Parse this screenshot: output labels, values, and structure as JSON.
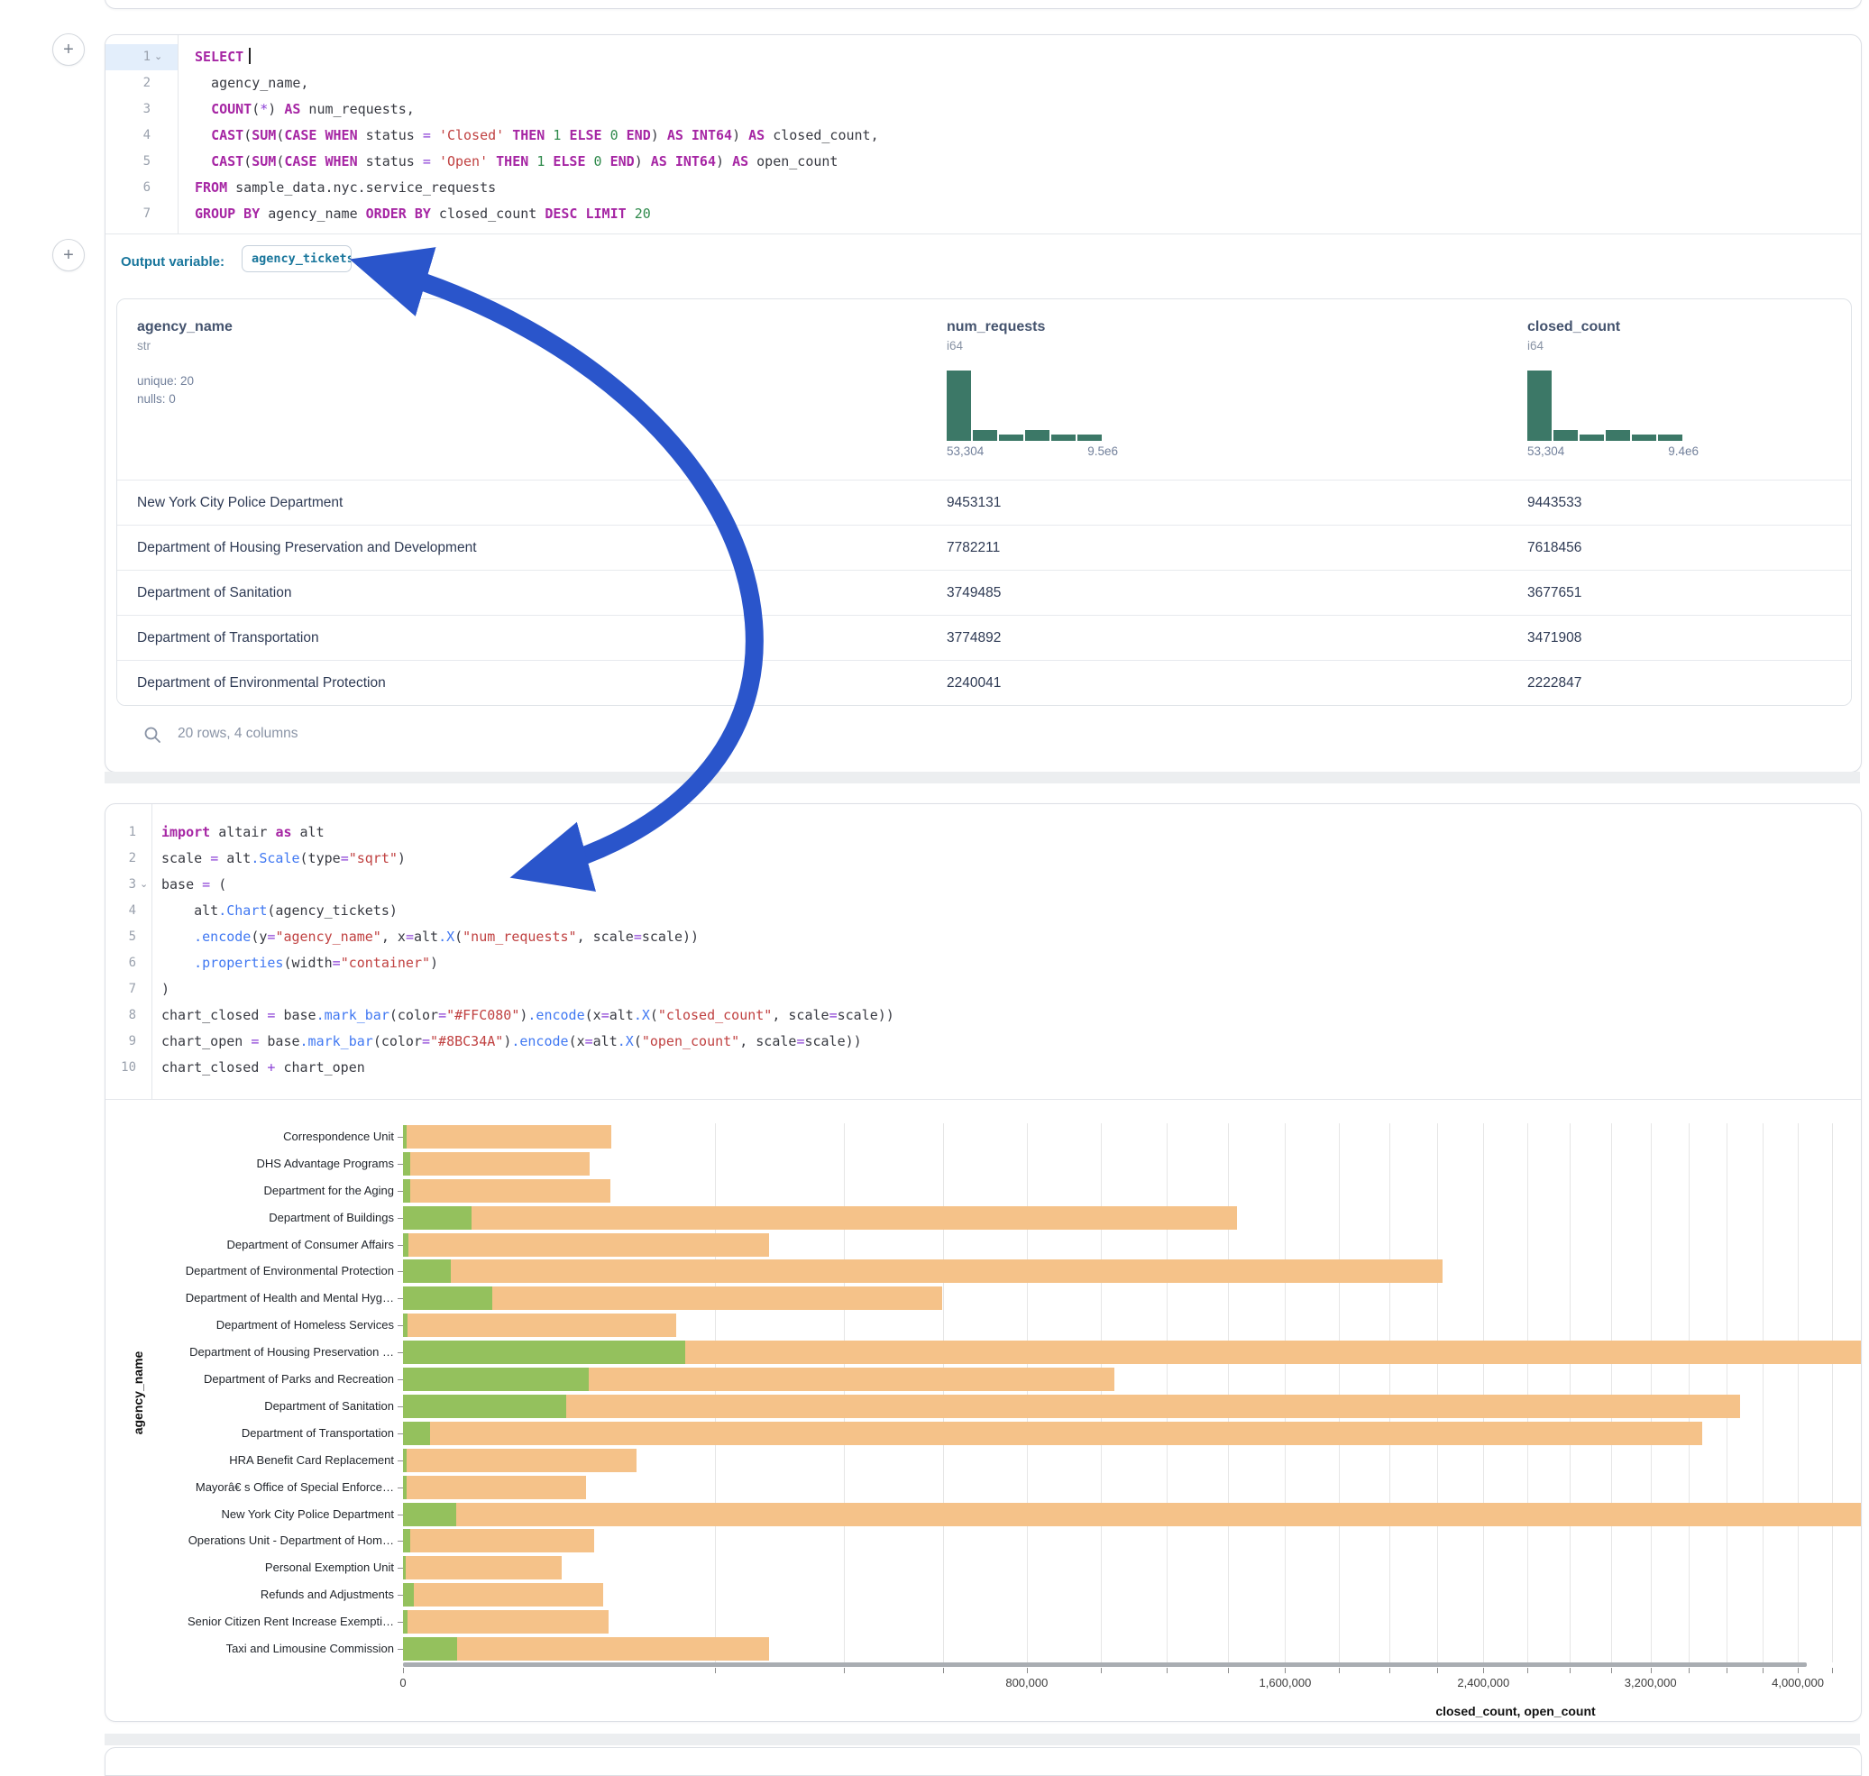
{
  "accent": {
    "arrow_blue": "#2a55cb",
    "hist_teal": "#3c7867",
    "outvar_teal": "#19769c"
  },
  "cell1": {
    "add_button": "+",
    "sql_gutter": [
      {
        "n": "1",
        "chevron": true,
        "highlight": true
      },
      {
        "n": "2"
      },
      {
        "n": "3"
      },
      {
        "n": "4"
      },
      {
        "n": "5"
      },
      {
        "n": "6"
      },
      {
        "n": "7"
      }
    ],
    "sql_lines": [
      [
        [
          "k",
          "SELECT"
        ],
        [
          "cursor",
          ""
        ]
      ],
      [
        [
          "p",
          "  agency_name,"
        ]
      ],
      [
        [
          "p",
          "  "
        ],
        [
          "k",
          "COUNT"
        ],
        [
          "p",
          "("
        ],
        [
          "v",
          "*"
        ],
        [
          "p",
          ") "
        ],
        [
          "k",
          "AS"
        ],
        [
          "p",
          " num_requests,"
        ]
      ],
      [
        [
          "p",
          "  "
        ],
        [
          "k",
          "CAST"
        ],
        [
          "p",
          "("
        ],
        [
          "k",
          "SUM"
        ],
        [
          "p",
          "("
        ],
        [
          "k",
          "CASE"
        ],
        [
          "p",
          " "
        ],
        [
          "k",
          "WHEN"
        ],
        [
          "p",
          " status "
        ],
        [
          "v",
          "="
        ],
        [
          "p",
          " "
        ],
        [
          "s",
          "'Closed'"
        ],
        [
          "p",
          " "
        ],
        [
          "k",
          "THEN"
        ],
        [
          "p",
          " "
        ],
        [
          "n",
          "1"
        ],
        [
          "p",
          " "
        ],
        [
          "k",
          "ELSE"
        ],
        [
          "p",
          " "
        ],
        [
          "n",
          "0"
        ],
        [
          "p",
          " "
        ],
        [
          "k",
          "END"
        ],
        [
          "p",
          ") "
        ],
        [
          "k",
          "AS"
        ],
        [
          "p",
          " "
        ],
        [
          "k",
          "INT64"
        ],
        [
          "p",
          ") "
        ],
        [
          "k",
          "AS"
        ],
        [
          "p",
          " closed_count,"
        ]
      ],
      [
        [
          "p",
          "  "
        ],
        [
          "k",
          "CAST"
        ],
        [
          "p",
          "("
        ],
        [
          "k",
          "SUM"
        ],
        [
          "p",
          "("
        ],
        [
          "k",
          "CASE"
        ],
        [
          "p",
          " "
        ],
        [
          "k",
          "WHEN"
        ],
        [
          "p",
          " status "
        ],
        [
          "v",
          "="
        ],
        [
          "p",
          " "
        ],
        [
          "s",
          "'Open'"
        ],
        [
          "p",
          " "
        ],
        [
          "k",
          "THEN"
        ],
        [
          "p",
          " "
        ],
        [
          "n",
          "1"
        ],
        [
          "p",
          " "
        ],
        [
          "k",
          "ELSE"
        ],
        [
          "p",
          " "
        ],
        [
          "n",
          "0"
        ],
        [
          "p",
          " "
        ],
        [
          "k",
          "END"
        ],
        [
          "p",
          ") "
        ],
        [
          "k",
          "AS"
        ],
        [
          "p",
          " "
        ],
        [
          "k",
          "INT64"
        ],
        [
          "p",
          ") "
        ],
        [
          "k",
          "AS"
        ],
        [
          "p",
          " open_count"
        ]
      ],
      [
        [
          "k",
          "FROM"
        ],
        [
          "p",
          " sample_data.nyc.service_requests"
        ]
      ],
      [
        [
          "k",
          "GROUP BY"
        ],
        [
          "p",
          " agency_name "
        ],
        [
          "k",
          "ORDER BY"
        ],
        [
          "p",
          " closed_count "
        ],
        [
          "k",
          "DESC"
        ],
        [
          "p",
          " "
        ],
        [
          "k",
          "LIMIT"
        ],
        [
          "p",
          " "
        ],
        [
          "n",
          "20"
        ]
      ]
    ],
    "output_variable_label": "Output variable:",
    "output_variable_value": "agency_tickets",
    "table": {
      "columns": [
        {
          "name": "agency_name",
          "type": "str",
          "stats": [
            "unique: 20",
            "nulls: 0"
          ],
          "x": 22
        },
        {
          "name": "num_requests",
          "type": "i64",
          "x": 920,
          "hist": {
            "values": [
              100,
              15,
              9,
              15,
              9,
              9
            ],
            "min_label": "53,304",
            "max_label": "9.5e6"
          }
        },
        {
          "name": "closed_count",
          "type": "i64",
          "x": 1564,
          "hist": {
            "values": [
              100,
              15,
              9,
              15,
              9,
              9
            ],
            "min_label": "53,304",
            "max_label": "9.4e6"
          }
        }
      ],
      "rows": [
        [
          "New York City Police Department",
          "9453131",
          "9443533"
        ],
        [
          "Department of Housing Preservation and Development",
          "7782211",
          "7618456"
        ],
        [
          "Department of Sanitation",
          "3749485",
          "3677651"
        ],
        [
          "Department of Transportation",
          "3774892",
          "3471908"
        ],
        [
          "Department of Environmental Protection",
          "2240041",
          "2222847"
        ]
      ],
      "footer": "20 rows, 4 columns"
    }
  },
  "cell2": {
    "py_gutter": [
      {
        "n": "1"
      },
      {
        "n": "2"
      },
      {
        "n": "3",
        "chevron": true
      },
      {
        "n": "4"
      },
      {
        "n": "5"
      },
      {
        "n": "6"
      },
      {
        "n": "7"
      },
      {
        "n": "8"
      },
      {
        "n": "9"
      },
      {
        "n": "10"
      }
    ],
    "py_lines": [
      [
        [
          "k",
          "import"
        ],
        [
          "p",
          " altair "
        ],
        [
          "k",
          "as"
        ],
        [
          "p",
          " alt"
        ]
      ],
      [
        [
          "p",
          "scale "
        ],
        [
          "v",
          "="
        ],
        [
          "p",
          " alt"
        ],
        [
          "f",
          ".Scale"
        ],
        [
          "p",
          "(type"
        ],
        [
          "v",
          "="
        ],
        [
          "s",
          "\"sqrt\""
        ],
        [
          "p",
          ")"
        ]
      ],
      [
        [
          "p",
          "base "
        ],
        [
          "v",
          "="
        ],
        [
          "p",
          " ("
        ]
      ],
      [
        [
          "p",
          "    alt"
        ],
        [
          "f",
          ".Chart"
        ],
        [
          "p",
          "(agency_tickets)"
        ]
      ],
      [
        [
          "p",
          "    "
        ],
        [
          "f",
          ".encode"
        ],
        [
          "p",
          "(y"
        ],
        [
          "v",
          "="
        ],
        [
          "s",
          "\"agency_name\""
        ],
        [
          "p",
          ", x"
        ],
        [
          "v",
          "="
        ],
        [
          "p",
          "alt"
        ],
        [
          "f",
          ".X"
        ],
        [
          "p",
          "("
        ],
        [
          "s",
          "\"num_requests\""
        ],
        [
          "p",
          ", scale"
        ],
        [
          "v",
          "="
        ],
        [
          "p",
          "scale))"
        ]
      ],
      [
        [
          "p",
          "    "
        ],
        [
          "f",
          ".properties"
        ],
        [
          "p",
          "(width"
        ],
        [
          "v",
          "="
        ],
        [
          "s",
          "\"container\""
        ],
        [
          "p",
          ")"
        ]
      ],
      [
        [
          "p",
          ")"
        ]
      ],
      [
        [
          "p",
          "chart_closed "
        ],
        [
          "v",
          "="
        ],
        [
          "p",
          " base"
        ],
        [
          "f",
          ".mark_bar"
        ],
        [
          "p",
          "(color"
        ],
        [
          "v",
          "="
        ],
        [
          "s",
          "\"#FFC080\""
        ],
        [
          "p",
          ")"
        ],
        [
          "f",
          ".encode"
        ],
        [
          "p",
          "(x"
        ],
        [
          "v",
          "="
        ],
        [
          "p",
          "alt"
        ],
        [
          "f",
          ".X"
        ],
        [
          "p",
          "("
        ],
        [
          "s",
          "\"closed_count\""
        ],
        [
          "p",
          ", scale"
        ],
        [
          "v",
          "="
        ],
        [
          "p",
          "scale))"
        ]
      ],
      [
        [
          "p",
          "chart_open "
        ],
        [
          "v",
          "="
        ],
        [
          "p",
          " base"
        ],
        [
          "f",
          ".mark_bar"
        ],
        [
          "p",
          "(color"
        ],
        [
          "v",
          "="
        ],
        [
          "s",
          "\"#8BC34A\""
        ],
        [
          "p",
          ")"
        ],
        [
          "f",
          ".encode"
        ],
        [
          "p",
          "(x"
        ],
        [
          "v",
          "="
        ],
        [
          "p",
          "alt"
        ],
        [
          "f",
          ".X"
        ],
        [
          "p",
          "("
        ],
        [
          "s",
          "\"open_count\""
        ],
        [
          "p",
          ", scale"
        ],
        [
          "v",
          "="
        ],
        [
          "p",
          "scale))"
        ]
      ],
      [
        [
          "p",
          "chart_closed "
        ],
        [
          "v",
          "+"
        ],
        [
          "p",
          " chart_open"
        ]
      ]
    ]
  },
  "chart_data": {
    "type": "bar",
    "orientation": "horizontal",
    "xlabel": "closed_count, open_count",
    "ylabel": "agency_name",
    "x_scale": "sqrt",
    "x_visible_max": 4370000,
    "x_grid_step": 200000,
    "x_ticks_labeled": [
      0,
      800000,
      1600000,
      2400000,
      3200000,
      4000000
    ],
    "grid": true,
    "legend": false,
    "categories": [
      "Correspondence Unit",
      "DHS Advantage Programs",
      "Department for the Aging",
      "Department of Buildings",
      "Department of Consumer Affairs",
      "Department of Environmental Protection",
      "Department of Health and Mental Hyg…",
      "Department of Homeless Services",
      "Department of Housing Preservation …",
      "Department of Parks and Recreation",
      "Department of Sanitation",
      "Department of Transportation",
      "HRA Benefit Card Replacement",
      "Mayorâ€ s Office of Special Enforce…",
      "New York City Police Department",
      "Operations Unit - Department of Hom…",
      "Personal Exemption Unit",
      "Refunds and Adjustments",
      "Senior Citizen Rent Increase Exempti…",
      "Taxi and Limousine Commission"
    ],
    "series": [
      {
        "name": "closed_count",
        "color": "#f5c289",
        "values": [
          89000,
          71500,
          88500,
          1430000,
          276000,
          2222847,
          597000,
          153000,
          7618456,
          1040000,
          3677651,
          3471908,
          112000,
          69000,
          9443533,
          75000,
          52000,
          82000,
          87000,
          275000
        ]
      },
      {
        "name": "open_count",
        "color": "#94c15d",
        "values": [
          30,
          120,
          120,
          9700,
          60,
          4700,
          16300,
          40,
          163700,
          71000,
          55000,
          1500,
          30,
          30,
          5900,
          100,
          20,
          240,
          40,
          6000
        ]
      }
    ]
  }
}
